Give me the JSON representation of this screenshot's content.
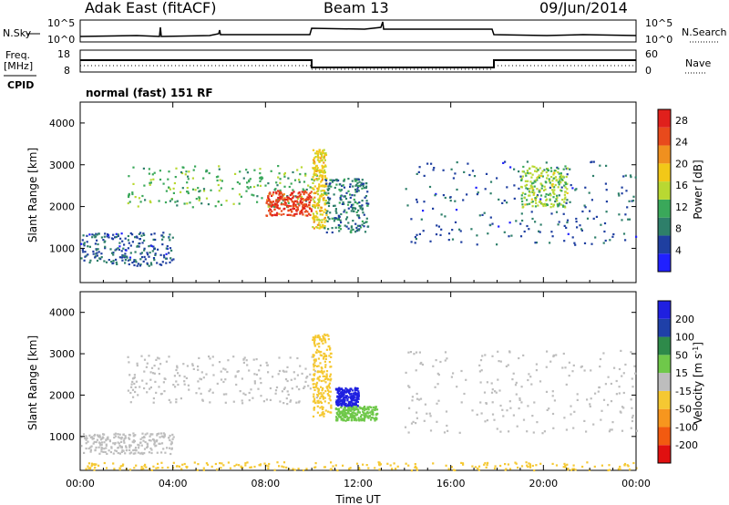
{
  "header": {
    "station": "Adak East (fitACF)",
    "beam": "Beam 13",
    "date": "09/Jun/2014"
  },
  "param_labels": {
    "nsky": "N.Sky",
    "nsky_ticks": [
      "10^5",
      "10^0"
    ],
    "nsearch": "N.Search",
    "nsearch_ticks": [
      "10^5",
      "10^0"
    ],
    "freq": "Freq.",
    "freq_unit": "[MHz]",
    "freq_ticks": [
      "18",
      "8"
    ],
    "cpid": "CPID",
    "nave": "Nave",
    "nave_ticks": [
      "60",
      "0"
    ],
    "mode": "normal (fast) 151 RF"
  },
  "colors": {
    "power_scale": [
      "#2020ff",
      "#1f3fa0",
      "#2e7f6a",
      "#3aa85a",
      "#b9d832",
      "#f2c818",
      "#f0901f",
      "#e84a1c",
      "#e0201c"
    ],
    "velocity_scale": [
      "#e01010",
      "#f25a10",
      "#f7961e",
      "#f5c832",
      "#bdbdbd",
      "#6fc84a",
      "#2e8a4a",
      "#1f40a8",
      "#1f20e0"
    ],
    "ground_scatter": "#bdbdbd"
  },
  "chart_data": [
    {
      "type": "heatmap",
      "title": "",
      "xlabel": "",
      "ylabel": "Slant Range [km]",
      "x_ticks": [
        "00:00",
        "04:00",
        "08:00",
        "12:00",
        "16:00",
        "20:00",
        "00:00"
      ],
      "y_ticks": [
        1000,
        2000,
        3000,
        4000
      ],
      "xlim_hours": [
        0,
        24
      ],
      "ylim_km": [
        180,
        4500
      ],
      "colorbar": {
        "label": "Power [dB]",
        "ticks": [
          4,
          8,
          12,
          16,
          20,
          24,
          28
        ],
        "range": [
          0,
          30
        ]
      },
      "echo_regions": [
        {
          "t_start": 2.0,
          "t_end": 10.2,
          "range_start": 2000,
          "range_end": 3000,
          "power_db": 12
        },
        {
          "t_start": 8.0,
          "t_end": 10.0,
          "range_start": 1800,
          "range_end": 2400,
          "power_db": 26
        },
        {
          "t_start": 10.0,
          "t_end": 10.6,
          "range_start": 1500,
          "range_end": 3400,
          "power_db": 18
        },
        {
          "t_start": 10.5,
          "t_end": 12.4,
          "range_start": 1400,
          "range_end": 2700,
          "power_db": 8
        },
        {
          "t_start": 0.0,
          "t_end": 4.0,
          "range_start": 600,
          "range_end": 1400,
          "power_db": 6
        },
        {
          "t_start": 14.0,
          "t_end": 24.0,
          "range_start": 1100,
          "range_end": 3100,
          "power_db": 6
        },
        {
          "t_start": 19.0,
          "t_end": 21.0,
          "range_start": 2000,
          "range_end": 3000,
          "power_db": 14
        }
      ]
    },
    {
      "type": "heatmap",
      "title": "",
      "xlabel": "Time UT",
      "ylabel": "Slant Range [km]",
      "x_ticks": [
        "00:00",
        "04:00",
        "08:00",
        "12:00",
        "16:00",
        "20:00",
        "00:00"
      ],
      "y_ticks": [
        1000,
        2000,
        3000,
        4000
      ],
      "xlim_hours": [
        0,
        24
      ],
      "ylim_km": [
        180,
        4500
      ],
      "colorbar": {
        "label": "Velocity [m s^-1]",
        "unit_main": "Velocity [m s",
        "unit_exp": "-1",
        "unit_close": "]",
        "ticks": [
          200,
          100,
          50,
          15,
          -15,
          -50,
          -100,
          -200
        ],
        "range": [
          -250,
          250
        ]
      },
      "echo_regions": [
        {
          "t_start": 2.0,
          "t_end": 10.2,
          "range_start": 1800,
          "range_end": 3000,
          "velocity": 0
        },
        {
          "t_start": 10.0,
          "t_end": 10.8,
          "range_start": 1500,
          "range_end": 3500,
          "velocity": -40
        },
        {
          "t_start": 11.0,
          "t_end": 12.0,
          "range_start": 1750,
          "range_end": 2200,
          "velocity": 220
        },
        {
          "t_start": 11.0,
          "t_end": 12.8,
          "range_start": 1400,
          "range_end": 1750,
          "velocity": 60
        },
        {
          "t_start": 0.0,
          "t_end": 4.0,
          "range_start": 600,
          "range_end": 1100,
          "velocity": 0
        },
        {
          "t_start": 14.0,
          "t_end": 24.0,
          "range_start": 1100,
          "range_end": 3100,
          "velocity": 0
        },
        {
          "t_start": 0.0,
          "t_end": 24.0,
          "range_start": 200,
          "range_end": 400,
          "velocity": -60
        }
      ]
    }
  ]
}
